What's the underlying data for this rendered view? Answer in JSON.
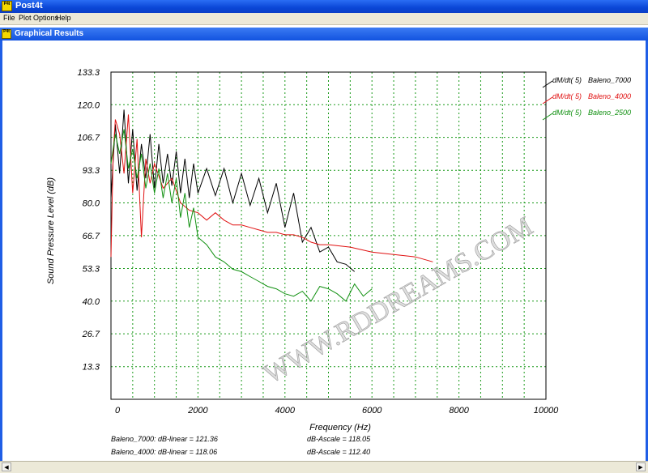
{
  "app": {
    "title": "Post4t",
    "icon": "app-icon"
  },
  "menu": {
    "items": [
      "File",
      "Plot Options",
      "Help"
    ]
  },
  "child_window": {
    "title": "Graphical Results"
  },
  "chart_data": {
    "type": "line",
    "xlabel": "Frequency (Hz)",
    "ylabel": "Sound Pressure Level (dB)",
    "xlim": [
      0,
      10000
    ],
    "ylim": [
      0,
      133.3
    ],
    "xticks": [
      "0",
      "2000",
      "4000",
      "6000",
      "8000",
      "10000"
    ],
    "yticks": [
      "13.3",
      "26.7",
      "40.0",
      "53.3",
      "66.7",
      "80.0",
      "93.3",
      "106.7",
      "120.0",
      "133.3"
    ],
    "grid": true,
    "legend_position": "top-right",
    "series": [
      {
        "name": "Baleno_7000",
        "metric": "dM/dt( 5)",
        "color": "#000000",
        "x": [
          0,
          100,
          200,
          300,
          400,
          500,
          600,
          700,
          800,
          900,
          1000,
          1100,
          1200,
          1300,
          1400,
          1500,
          1600,
          1700,
          1800,
          1900,
          2000,
          2200,
          2400,
          2600,
          2800,
          3000,
          3200,
          3400,
          3600,
          3800,
          4000,
          4200,
          4400,
          4600,
          4800,
          5000,
          5200,
          5400,
          5600
        ],
        "y": [
          82,
          112,
          92,
          118,
          88,
          110,
          85,
          104,
          90,
          108,
          86,
          104,
          88,
          100,
          87,
          101,
          84,
          98,
          82,
          96,
          84,
          94,
          83,
          94,
          80,
          92,
          79,
          90,
          76,
          88,
          70,
          84,
          64,
          70,
          60,
          62,
          56,
          55,
          52
        ]
      },
      {
        "name": "Baleno_4000",
        "metric": "dM/dt( 5)",
        "color": "#e01010",
        "x": [
          0,
          50,
          100,
          200,
          300,
          400,
          500,
          600,
          700,
          800,
          900,
          1000,
          1200,
          1400,
          1600,
          1800,
          2000,
          2200,
          2400,
          2600,
          2800,
          3000,
          3200,
          3400,
          3600,
          3800,
          4000,
          4200,
          4400,
          4600,
          4800,
          5000,
          5500,
          6000,
          6500,
          7000,
          7400
        ],
        "y": [
          58,
          100,
          114,
          108,
          92,
          116,
          84,
          106,
          66,
          98,
          88,
          96,
          86,
          90,
          80,
          77,
          76,
          73,
          76,
          73,
          71,
          71,
          70,
          69,
          68,
          68,
          67,
          67,
          66,
          64,
          63,
          63,
          62,
          60,
          59,
          58,
          56
        ]
      },
      {
        "name": "Baleno_2500",
        "metric": "dM/dt( 5)",
        "color": "#109010",
        "x": [
          0,
          100,
          200,
          300,
          400,
          500,
          600,
          700,
          800,
          900,
          1000,
          1100,
          1200,
          1300,
          1400,
          1500,
          1600,
          1700,
          1800,
          1900,
          2000,
          2200,
          2400,
          2600,
          2800,
          3000,
          3200,
          3400,
          3600,
          3800,
          4000,
          4200,
          4400,
          4600,
          4800,
          5000,
          5200,
          5400,
          5600,
          5800,
          6000
        ],
        "y": [
          96,
          108,
          100,
          110,
          94,
          102,
          90,
          100,
          86,
          96,
          84,
          94,
          82,
          92,
          80,
          90,
          74,
          84,
          70,
          78,
          66,
          63,
          58,
          56,
          53,
          52,
          50,
          48,
          46,
          45,
          43,
          42,
          44,
          40,
          46,
          45,
          43,
          40,
          47,
          42,
          45
        ]
      }
    ]
  },
  "watermark": "WWW.RDDREAMS.COM",
  "stats": {
    "baleno7000_linear": "Baleno_7000:  dB-linear = 121.36",
    "baleno7000_ascale": "dB-Ascale = 118.05",
    "baleno4000_linear": "Baleno_4000:  dB-linear = 118.06",
    "baleno4000_ascale": "dB-Ascale = 112.40"
  }
}
